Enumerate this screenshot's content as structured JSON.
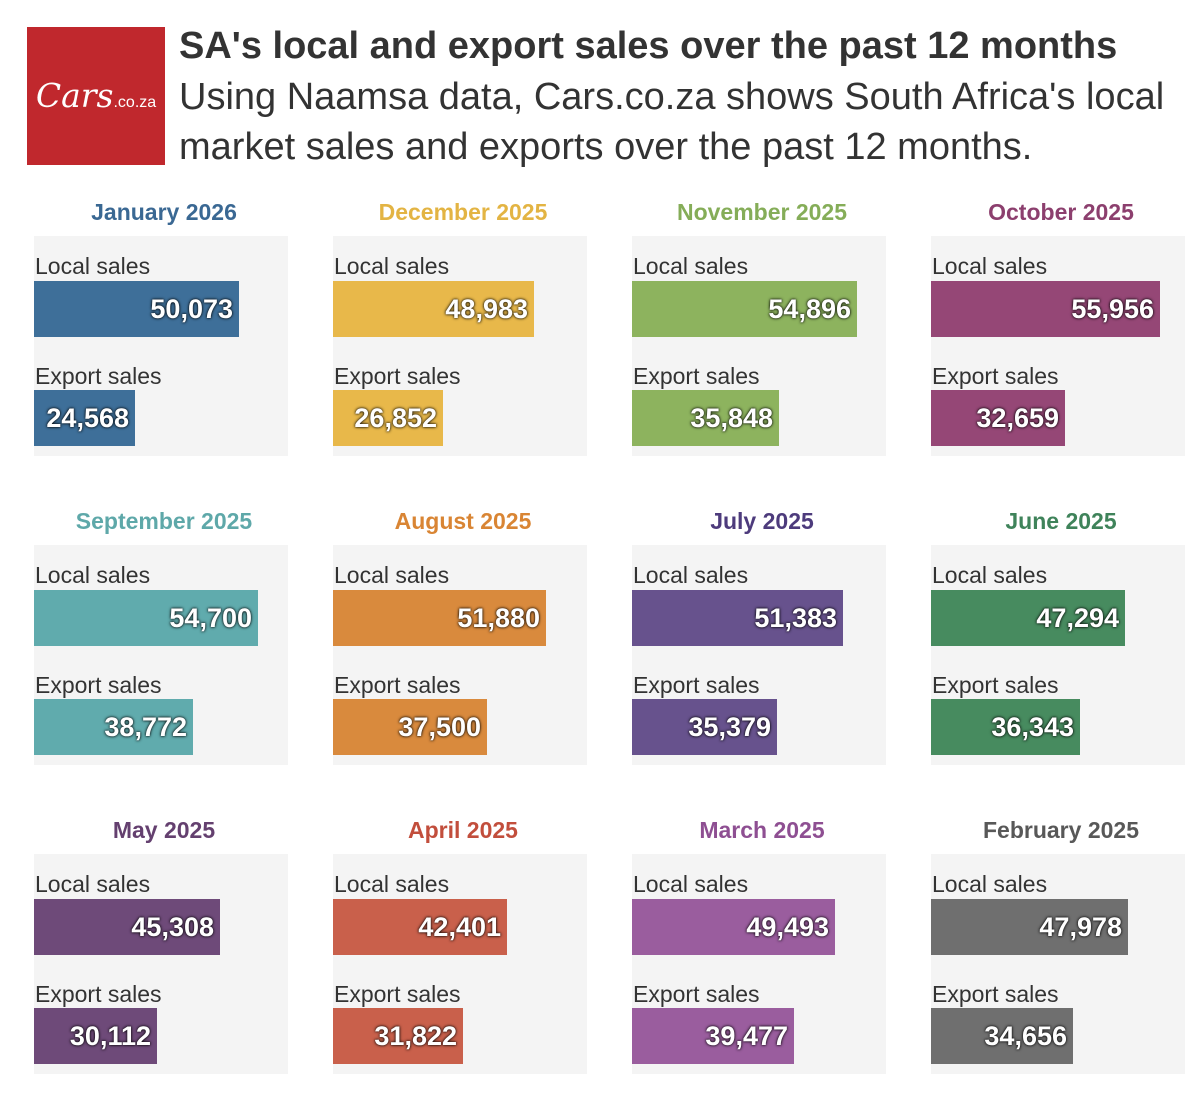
{
  "header": {
    "logo_text": "Cars.co.za",
    "title": "SA's local and export sales over the past 12 months",
    "subtitle": "Using Naamsa data, Cars.co.za shows South Africa's local market sales and exports over the past 12 months."
  },
  "chart_data": {
    "type": "bar",
    "title": "SA's local and export sales over the past 12 months",
    "subtitle": "Using Naamsa data, Cars.co.za shows South Africa's local market sales and exports over the past 12 months.",
    "series_labels": {
      "local": "Local sales",
      "export": "Export sales"
    },
    "xlim": [
      0,
      62000
    ],
    "panels": [
      {
        "month": "January 2026",
        "color": "#3e6f99",
        "local": 50073,
        "export": 24568,
        "local_label": "50,073",
        "export_label": "24,568"
      },
      {
        "month": "December 2025",
        "color": "#e8b84a",
        "local": 48983,
        "export": 26852,
        "local_label": "48,983",
        "export_label": "26,852"
      },
      {
        "month": "November 2025",
        "color": "#8db35e",
        "local": 54896,
        "export": 35848,
        "local_label": "54,896",
        "export_label": "35,848"
      },
      {
        "month": "October 2025",
        "color": "#954776",
        "local": 55956,
        "export": 32659,
        "local_label": "55,956",
        "export_label": "32,659"
      },
      {
        "month": "September 2025",
        "color": "#60abad",
        "local": 54700,
        "export": 38772,
        "local_label": "54,700",
        "export_label": "38,772"
      },
      {
        "month": "August 2025",
        "color": "#d98a3d",
        "local": 51880,
        "export": 37500,
        "local_label": "51,880",
        "export_label": "37,500"
      },
      {
        "month": "July 2025",
        "color": "#67528d",
        "local": 51383,
        "export": 35379,
        "local_label": "51,383",
        "export_label": "35,379"
      },
      {
        "month": "June 2025",
        "color": "#478b5f",
        "local": 47294,
        "export": 36343,
        "local_label": "47,294",
        "export_label": "36,343"
      },
      {
        "month": "May 2025",
        "color": "#6e4a79",
        "local": 45308,
        "export": 30112,
        "local_label": "45,308",
        "export_label": "30,112"
      },
      {
        "month": "April 2025",
        "color": "#c9604b",
        "local": 42401,
        "export": 31822,
        "local_label": "42,401",
        "export_label": "31,822"
      },
      {
        "month": "March 2025",
        "color": "#9a5d9e",
        "local": 49493,
        "export": 39477,
        "local_label": "49,493",
        "export_label": "39,477"
      },
      {
        "month": "February 2025",
        "color": "#6f6f6f",
        "local": 47978,
        "export": 34656,
        "local_label": "47,978",
        "export_label": "34,656"
      }
    ],
    "month_colors": [
      "#3a6893",
      "#e3b443",
      "#85ad58",
      "#8c3f6e",
      "#5ea8a9",
      "#d98534",
      "#4d3b7c",
      "#3f835a",
      "#64406f",
      "#c24e3c",
      "#8e4f92",
      "#585858"
    ]
  }
}
